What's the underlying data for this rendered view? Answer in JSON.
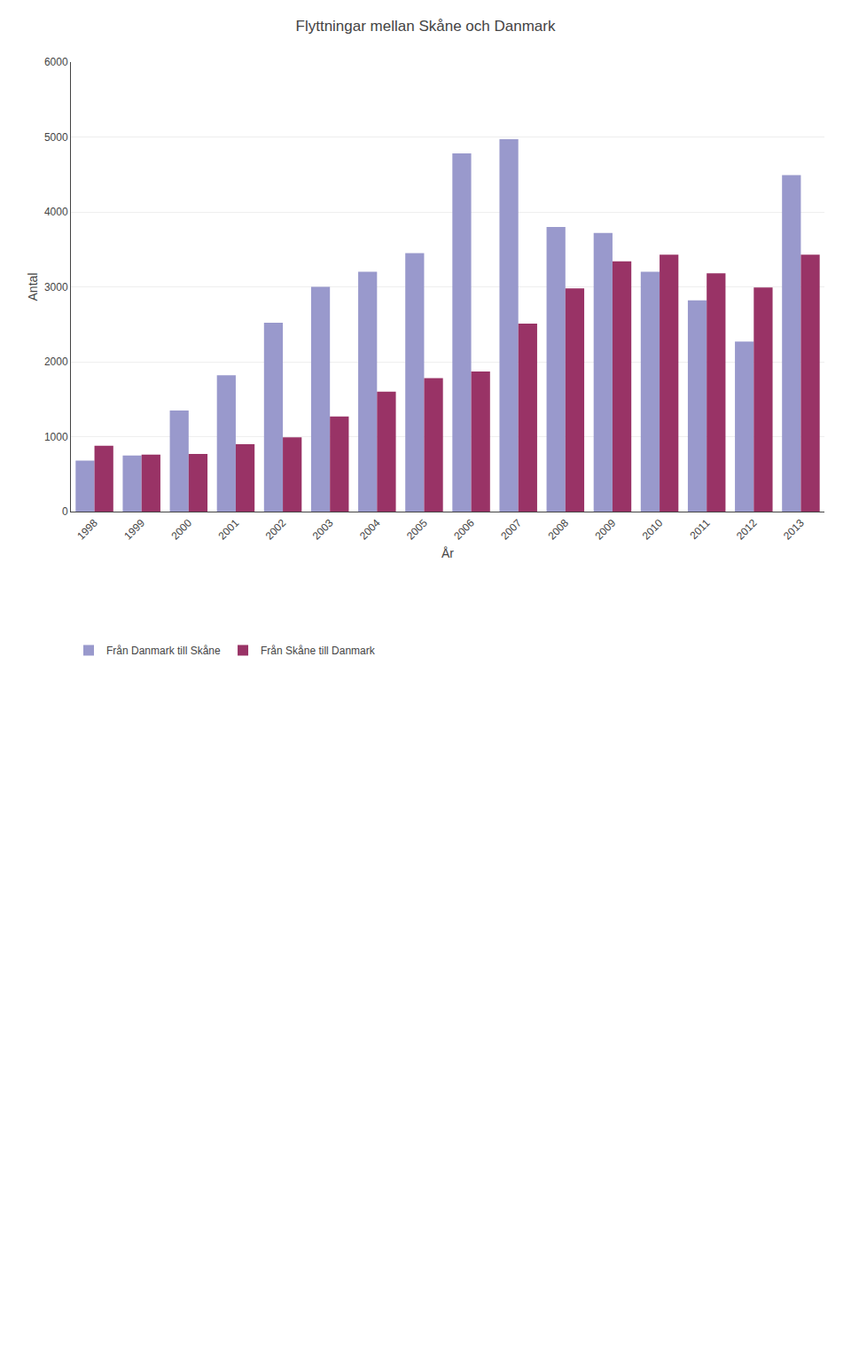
{
  "chart_data": {
    "type": "bar",
    "title": "Flyttningar mellan Skåne och Danmark",
    "xlabel": "År",
    "ylabel": "Antal",
    "categories": [
      "1998",
      "1999",
      "2000",
      "2001",
      "2002",
      "2003",
      "2004",
      "2005",
      "2006",
      "2007",
      "2008",
      "2009",
      "2010",
      "2011",
      "2012",
      "2013"
    ],
    "series": [
      {
        "name": "Från Danmark till Skåne",
        "color": "#9999CC",
        "values": [
          680,
          750,
          1350,
          1820,
          2520,
          3000,
          3200,
          3450,
          4780,
          4970,
          3800,
          3720,
          3200,
          2820,
          2270,
          4490
        ]
      },
      {
        "name": "Från Skåne till Danmark",
        "color": "#993366",
        "values": [
          880,
          760,
          770,
          900,
          990,
          1270,
          1600,
          1780,
          1870,
          2510,
          2980,
          3340,
          3430,
          3180,
          2990,
          3430
        ]
      }
    ],
    "ylim": [
      0,
      6000
    ],
    "yticks": [
      0,
      1000,
      2000,
      3000,
      4000,
      5000,
      6000
    ],
    "grid": true
  }
}
